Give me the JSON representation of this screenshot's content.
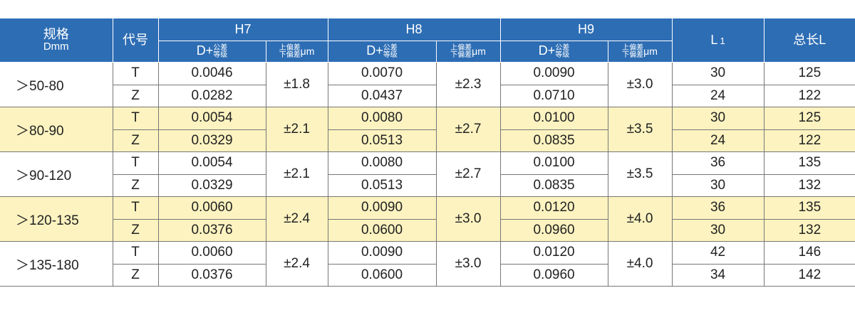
{
  "header": {
    "spec": [
      "规格",
      "Dmm"
    ],
    "code": "代号",
    "groups": [
      {
        "name": "H7",
        "d_prefix": "D+",
        "d_stack": [
          "公差",
          "等级"
        ],
        "dev_stack": [
          "上偏差",
          "下偏差"
        ],
        "dev_unit": "μm"
      },
      {
        "name": "H8",
        "d_prefix": "D+",
        "d_stack": [
          "公差",
          "等级"
        ],
        "dev_stack": [
          "上偏差",
          "下偏差"
        ],
        "dev_unit": "μm"
      },
      {
        "name": "H9",
        "d_prefix": "D+",
        "d_stack": [
          "公差",
          "等级"
        ],
        "dev_stack": [
          "上偏差",
          "下偏差"
        ],
        "dev_unit": "μm"
      }
    ],
    "l1": {
      "main": "L",
      "sub": "1"
    },
    "total": "总长L"
  },
  "style": {
    "header_color": "#2d6db4",
    "highlight_color": "#fcf3c0"
  },
  "rows": [
    {
      "spec": "＞50-80",
      "highlight": false,
      "dev": [
        "±1.8",
        "±2.3",
        "±3.0"
      ],
      "lines": [
        {
          "code": "T",
          "d": [
            "0.0046",
            "0.0070",
            "0.0090"
          ],
          "l1": "30",
          "total": "125"
        },
        {
          "code": "Z",
          "d": [
            "0.0282",
            "0.0437",
            "0.0710"
          ],
          "l1": "24",
          "total": "122"
        }
      ]
    },
    {
      "spec": "＞80-90",
      "highlight": true,
      "dev": [
        "±2.1",
        "±2.7",
        "±3.5"
      ],
      "lines": [
        {
          "code": "T",
          "d": [
            "0.0054",
            "0.0080",
            "0.0100"
          ],
          "l1": "30",
          "total": "125"
        },
        {
          "code": "Z",
          "d": [
            "0.0329",
            "0.0513",
            "0.0835"
          ],
          "l1": "24",
          "total": "122"
        }
      ]
    },
    {
      "spec": "＞90-120",
      "highlight": false,
      "dev": [
        "±2.1",
        "±2.7",
        "±3.5"
      ],
      "lines": [
        {
          "code": "T",
          "d": [
            "0.0054",
            "0.0080",
            "0.0100"
          ],
          "l1": "36",
          "total": "135"
        },
        {
          "code": "Z",
          "d": [
            "0.0329",
            "0.0513",
            "0.0835"
          ],
          "l1": "30",
          "total": "132"
        }
      ]
    },
    {
      "spec": "＞120-135",
      "highlight": true,
      "dev": [
        "±2.4",
        "±3.0",
        "±4.0"
      ],
      "lines": [
        {
          "code": "T",
          "d": [
            "0.0060",
            "0.0090",
            "0.0120"
          ],
          "l1": "36",
          "total": "135"
        },
        {
          "code": "Z",
          "d": [
            "0.0376",
            "0.0600",
            "0.0960"
          ],
          "l1": "30",
          "total": "132"
        }
      ]
    },
    {
      "spec": "＞135-180",
      "highlight": false,
      "dev": [
        "±2.4",
        "±3.0",
        "±4.0"
      ],
      "lines": [
        {
          "code": "T",
          "d": [
            "0.0060",
            "0.0090",
            "0.0120"
          ],
          "l1": "42",
          "total": "146"
        },
        {
          "code": "Z",
          "d": [
            "0.0376",
            "0.0600",
            "0.0960"
          ],
          "l1": "34",
          "total": "142"
        }
      ]
    }
  ]
}
